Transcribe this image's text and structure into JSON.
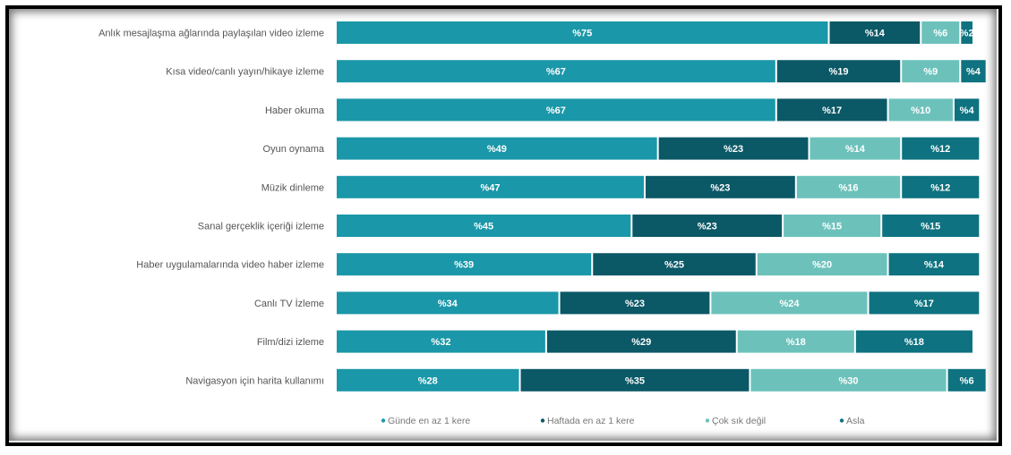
{
  "chart_data": {
    "type": "bar",
    "orientation": "horizontal",
    "stacked": true,
    "categories": [
      "Anlık mesajlaşma ağlarında paylaşılan video izleme",
      "Kısa video/canlı yayın/hikaye izleme",
      "Haber okuma",
      "Oyun oynama",
      "Müzik dinleme",
      "Sanal gerçeklik içeriği izleme",
      "Haber uygulamalarında video haber izleme",
      "Canlı TV İzleme",
      "Film/dizi izleme",
      "Navigasyon için harita kullanımı"
    ],
    "series": [
      {
        "name": "Günde en az 1 kere",
        "color": "#1a97a8",
        "values": [
          75,
          67,
          67,
          49,
          47,
          45,
          39,
          34,
          32,
          28
        ]
      },
      {
        "name": "Haftada en az 1 kere",
        "color": "#0b5866",
        "values": [
          14,
          19,
          17,
          23,
          23,
          23,
          25,
          23,
          29,
          35
        ]
      },
      {
        "name": "Çok sık değil",
        "color": "#6cc2bb",
        "values": [
          6,
          9,
          10,
          14,
          16,
          15,
          20,
          24,
          18,
          30
        ]
      },
      {
        "name": "Asla",
        "color": "#0e7280",
        "values": [
          2,
          4,
          4,
          12,
          12,
          15,
          14,
          17,
          18,
          6
        ]
      }
    ],
    "data_labels": [
      [
        "%75",
        "%14",
        "%6",
        "%2"
      ],
      [
        "%67",
        "%19",
        "%9",
        "%4"
      ],
      [
        "%67",
        "%17",
        "%10",
        "%4"
      ],
      [
        "%49",
        "%23",
        "%14",
        "%12"
      ],
      [
        "%47",
        "%23",
        "%16",
        "%12"
      ],
      [
        "%45",
        "%23",
        "%15",
        "%15"
      ],
      [
        "%39",
        "%25",
        "%20",
        "%14"
      ],
      [
        "%34",
        "%23",
        "%24",
        "%17"
      ],
      [
        "%32",
        "%29",
        "%18",
        "%18"
      ],
      [
        "%28",
        "%35",
        "%30",
        "%6"
      ]
    ],
    "xlim": [
      0,
      100
    ],
    "grid": false,
    "legend_position": "bottom"
  }
}
